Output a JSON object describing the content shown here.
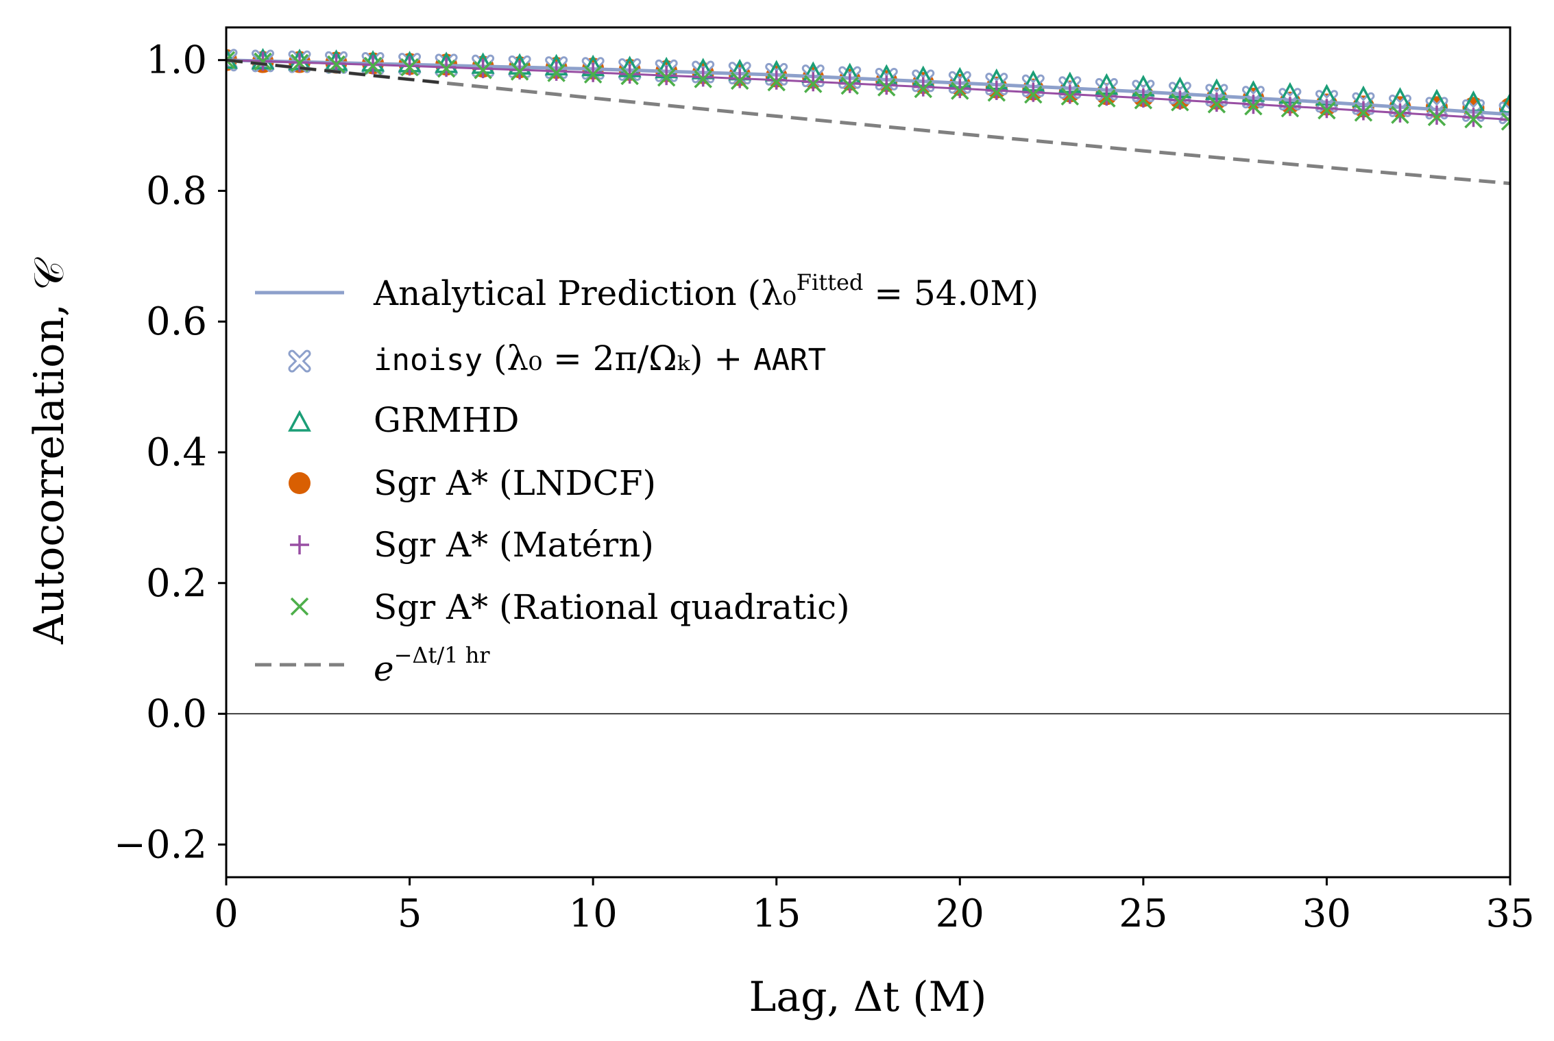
{
  "chart_data": {
    "type": "line",
    "xlabel": "Lag, Δt (M)",
    "ylabel": "Autocorrelation, 𝒞",
    "xlim": [
      0,
      35
    ],
    "ylim": [
      -0.25,
      1.05
    ],
    "xticks": [
      0,
      5,
      10,
      15,
      20,
      25,
      30,
      35
    ],
    "xtick_labels": [
      "0",
      "5",
      "10",
      "15",
      "20",
      "25",
      "30",
      "35"
    ],
    "yticks": [
      -0.2,
      0.0,
      0.2,
      0.4,
      0.6,
      0.8,
      1.0
    ],
    "ytick_labels": [
      "−0.2",
      "0.0",
      "0.2",
      "0.4",
      "0.6",
      "0.8",
      "1.0"
    ],
    "legend_position": "center-left",
    "x": [
      0,
      1,
      2,
      3,
      4,
      5,
      6,
      7,
      8,
      9,
      10,
      11,
      12,
      13,
      14,
      15,
      16,
      17,
      18,
      19,
      20,
      21,
      22,
      23,
      24,
      25,
      26,
      27,
      28,
      29,
      30,
      31,
      32,
      33,
      34,
      35
    ],
    "series": [
      {
        "name": "Analytical Prediction",
        "legend": "Analytical Prediction (λ₀ᶠⁱᵗᵗᵉᵈ = 54.0M)",
        "style": "line",
        "color": "#8da0cb",
        "values": [
          1.0,
          0.9986,
          0.9973,
          0.9959,
          0.9945,
          0.9932,
          0.9918,
          0.9904,
          0.9891,
          0.9877,
          0.9864,
          0.9846,
          0.9828,
          0.981,
          0.9792,
          0.9774,
          0.9749,
          0.9724,
          0.9699,
          0.9674,
          0.9649,
          0.9623,
          0.9596,
          0.9569,
          0.9542,
          0.9515,
          0.9483,
          0.9451,
          0.9419,
          0.9387,
          0.9355,
          0.9318,
          0.9281,
          0.9244,
          0.9207,
          0.917
        ]
      },
      {
        "name": "inoisy + AART",
        "legend_mono_1": "inoisy",
        "legend_mid": " (λ₀ = 2π/Ωₖ) + ",
        "legend_mono_2": "AART",
        "style": "thick-x-marker",
        "color": "#8da0cb",
        "values": [
          1.0,
          0.9988,
          0.9975,
          0.9963,
          0.995,
          0.9938,
          0.9925,
          0.9912,
          0.9899,
          0.9886,
          0.9873,
          0.9855,
          0.9837,
          0.9819,
          0.9801,
          0.9783,
          0.9759,
          0.9734,
          0.9709,
          0.9684,
          0.9659,
          0.9634,
          0.9607,
          0.958,
          0.9553,
          0.9526,
          0.9495,
          0.9464,
          0.9433,
          0.9402,
          0.9371,
          0.9335,
          0.93,
          0.9264,
          0.9228,
          0.9192
        ]
      },
      {
        "name": "GRMHD",
        "legend": "GRMHD",
        "style": "triangle-marker",
        "color": "#1b9e77",
        "values": [
          1.0,
          0.999,
          0.9979,
          0.9968,
          0.9957,
          0.9946,
          0.9935,
          0.9923,
          0.9911,
          0.9899,
          0.9887,
          0.9871,
          0.9855,
          0.9839,
          0.9823,
          0.9807,
          0.9785,
          0.9764,
          0.9742,
          0.9721,
          0.9699,
          0.9676,
          0.9652,
          0.9628,
          0.9604,
          0.958,
          0.9552,
          0.9524,
          0.9496,
          0.9468,
          0.944,
          0.9415,
          0.939,
          0.9365,
          0.934,
          0.9315
        ]
      },
      {
        "name": "Sgr A* (LNDCF)",
        "legend": "Sgr A* (LNDCF)",
        "style": "circle-marker",
        "color": "#d95f02",
        "values": [
          1.0,
          0.997,
          0.997,
          0.996,
          0.995,
          0.994,
          0.993,
          0.99,
          0.989,
          0.988,
          0.987,
          0.985,
          0.983,
          0.98,
          0.977,
          0.975,
          0.973,
          0.97,
          0.968,
          0.965,
          0.962,
          0.958,
          0.955,
          0.952,
          0.948,
          0.945,
          0.942,
          0.941,
          0.941,
          0.935,
          0.932,
          0.929,
          0.928,
          0.928,
          0.927,
          0.926
        ]
      },
      {
        "name": "Sgr A* (Matérn)",
        "legend": "Sgr A* (Matérn)",
        "style": "plus-marker",
        "color": "#984ea3",
        "values": [
          1.0,
          0.9982,
          0.9964,
          0.9946,
          0.9928,
          0.991,
          0.989,
          0.987,
          0.985,
          0.983,
          0.981,
          0.9787,
          0.9764,
          0.9741,
          0.9718,
          0.9695,
          0.9669,
          0.9643,
          0.9617,
          0.9591,
          0.9565,
          0.9536,
          0.9507,
          0.9478,
          0.9449,
          0.942,
          0.9388,
          0.9356,
          0.9324,
          0.9292,
          0.926,
          0.9226,
          0.9192,
          0.9158,
          0.9124,
          0.909
        ]
      },
      {
        "name": "Sgr A* (Rational quadratic)",
        "legend": "Sgr A* (Rational quadratic)",
        "style": "x-marker",
        "color": "#4daf4a",
        "values": [
          1.0,
          0.9978,
          0.9956,
          0.9934,
          0.9912,
          0.989,
          0.9868,
          0.9846,
          0.9824,
          0.9802,
          0.978,
          0.9756,
          0.9732,
          0.9708,
          0.9684,
          0.966,
          0.9634,
          0.9608,
          0.9582,
          0.9556,
          0.953,
          0.9501,
          0.9472,
          0.9443,
          0.9414,
          0.9385,
          0.9354,
          0.9323,
          0.9292,
          0.9261,
          0.923,
          0.9196,
          0.9162,
          0.9128,
          0.9094,
          0.906
        ]
      },
      {
        "name": "exp(-Δt / 1 hr)",
        "legend": "e^(−Δt/1 hr)",
        "style": "dashed-line",
        "color": "#808080",
        "values": [
          1.0,
          0.994,
          0.9881,
          0.9822,
          0.9763,
          0.9705,
          0.9647,
          0.959,
          0.9533,
          0.9476,
          0.9419,
          0.9363,
          0.9307,
          0.9252,
          0.9197,
          0.9142,
          0.9088,
          0.9034,
          0.898,
          0.8926,
          0.8873,
          0.882,
          0.8768,
          0.8716,
          0.8664,
          0.8612,
          0.8561,
          0.851,
          0.8459,
          0.8409,
          0.8359,
          0.8309,
          0.826,
          0.8211,
          0.8162,
          0.8113
        ]
      }
    ]
  },
  "legend_labels": {
    "analytical_main": "Analytical Prediction (λ₀",
    "analytical_sup": "Fitted",
    "analytical_tail": " = 54.0M)",
    "inoisy_1": "inoisy",
    "inoisy_mid": " (λ₀ = 2π/Ωₖ) + ",
    "inoisy_2": "AART",
    "grmhd": "GRMHD",
    "lndcf": "Sgr A* (LNDCF)",
    "matern": "Sgr A* (Matérn)",
    "ratquad": "Sgr A* (Rational quadratic)",
    "exp_base": "e",
    "exp_sup": "−Δt/1 hr"
  }
}
